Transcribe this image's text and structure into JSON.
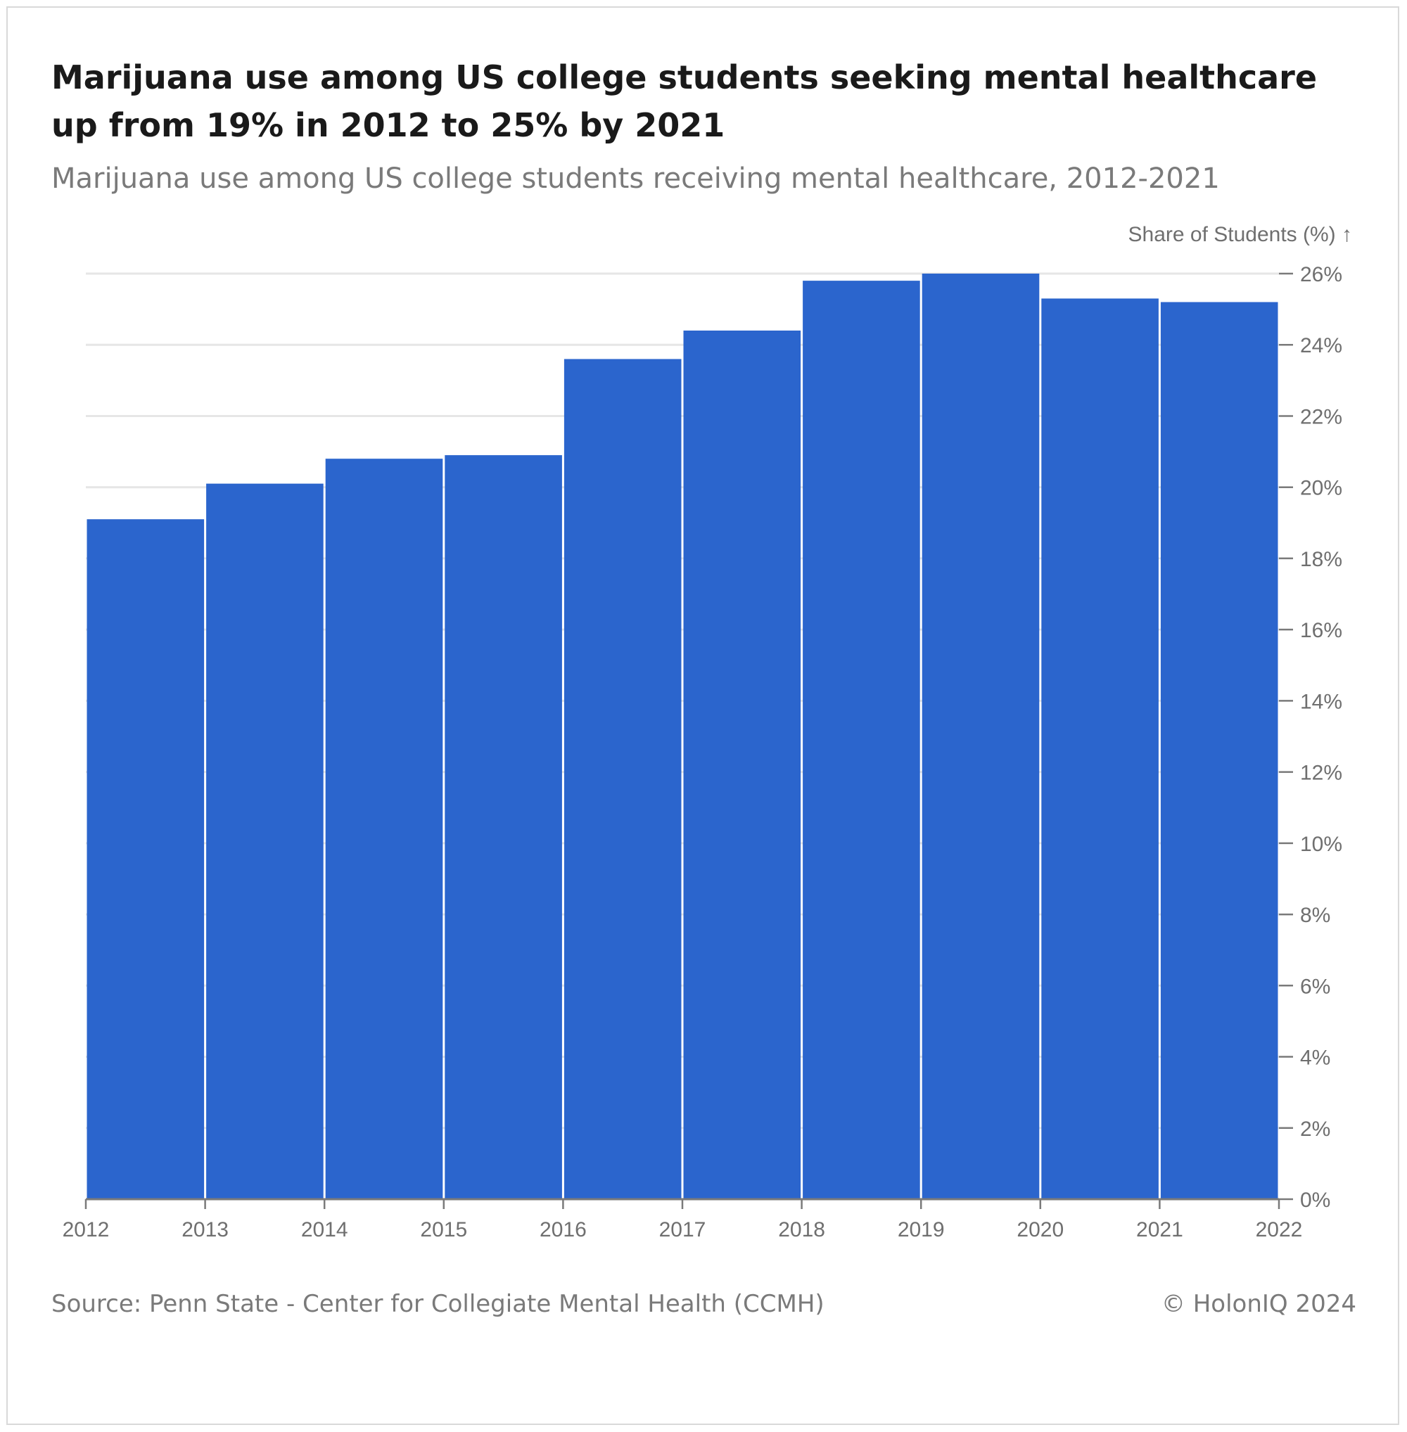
{
  "header": {
    "title": "Marijuana use among US college students seeking mental healthcare up from 19% in 2012 to 25% by 2021",
    "subtitle": "Marijuana use among US college students receiving mental healthcare, 2012-2021"
  },
  "footer": {
    "source": "Source: Penn State - Center for Collegiate Mental Health (CCMH)",
    "copyright": "© HolonIQ 2024"
  },
  "chart_data": {
    "type": "bar",
    "ylabel": "Share of Students (%) ↑",
    "categories": [
      "2012",
      "2013",
      "2014",
      "2015",
      "2016",
      "2017",
      "2018",
      "2019",
      "2020",
      "2021"
    ],
    "values": [
      19.1,
      20.1,
      20.8,
      20.9,
      23.6,
      24.4,
      25.8,
      26.0,
      25.3,
      25.2
    ],
    "x_ticks": [
      "2012",
      "2013",
      "2014",
      "2015",
      "2016",
      "2017",
      "2018",
      "2019",
      "2020",
      "2021",
      "2022"
    ],
    "y_ticks": [
      0,
      2,
      4,
      6,
      8,
      10,
      12,
      14,
      16,
      18,
      20,
      22,
      24,
      26
    ],
    "y_tick_suffix": "%",
    "ylim": [
      0,
      26
    ],
    "grid": true,
    "y_axis_position": "right",
    "colors": {
      "bar": "#2b65cd",
      "grid": "#e6e6e6",
      "axis": "#7a7a7a",
      "text": "#6f6f6f"
    }
  }
}
